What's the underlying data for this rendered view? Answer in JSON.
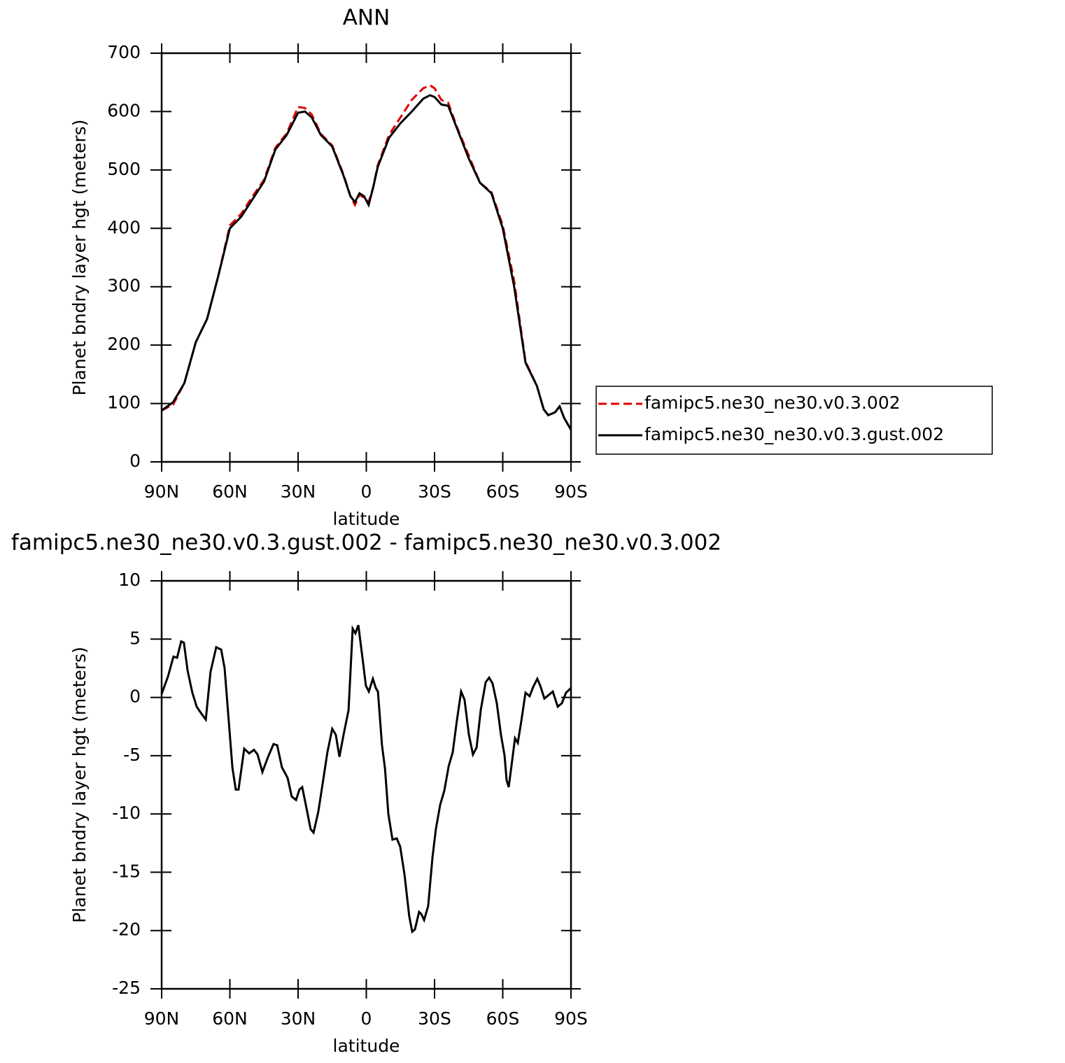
{
  "chart_data": [
    {
      "type": "line",
      "title": "ANN",
      "x_label": "latitude",
      "y_label": "Planet bndry layer hgt (meters)",
      "x": [
        90,
        85,
        80,
        75,
        70,
        65,
        60,
        55,
        50,
        45,
        40,
        35,
        30,
        27,
        24,
        20,
        15,
        10,
        7,
        5,
        3,
        1,
        -1,
        -3,
        -5,
        -10,
        -15,
        -20,
        -25,
        -28,
        -30,
        -33,
        -36,
        -40,
        -45,
        -50,
        -55,
        -60,
        -65,
        -70,
        -75,
        -78,
        -80,
        -83,
        -85,
        -87,
        -90
      ],
      "series": [
        {
          "name": "famipc5.ne30_ne30.v0.3.002",
          "color": "#e00000",
          "line_style": "dashed",
          "values": [
            88,
            98,
            135,
            205,
            245,
            320,
            405,
            425,
            455,
            483,
            538,
            563,
            608,
            606,
            595,
            562,
            542,
            492,
            455,
            440,
            458,
            452,
            445,
            470,
            508,
            560,
            590,
            620,
            640,
            645,
            640,
            620,
            615,
            572,
            525,
            478,
            462,
            405,
            310,
            172,
            130,
            90,
            80,
            85,
            95,
            75,
            55
          ]
        },
        {
          "name": "famipc5.ne30_ne30.v0.3.gust.002",
          "color": "#000000",
          "line_style": "solid",
          "values": [
            88,
            102,
            135,
            205,
            245,
            320,
            400,
            420,
            450,
            480,
            535,
            560,
            598,
            600,
            590,
            560,
            540,
            490,
            455,
            445,
            460,
            455,
            440,
            470,
            505,
            555,
            580,
            600,
            622,
            628,
            625,
            612,
            610,
            570,
            520,
            478,
            460,
            400,
            300,
            170,
            130,
            90,
            80,
            85,
            95,
            75,
            55
          ]
        }
      ],
      "xlim": [
        90,
        -90
      ],
      "xticks": [
        {
          "value": 90,
          "label": "90N"
        },
        {
          "value": 60,
          "label": "60N"
        },
        {
          "value": 30,
          "label": "30N"
        },
        0,
        {
          "value": -30,
          "label": "30S"
        },
        {
          "value": -60,
          "label": "60S"
        },
        {
          "value": -90,
          "label": "90S"
        }
      ],
      "ylim": [
        0,
        700
      ],
      "yticks": [
        0,
        100,
        200,
        300,
        400,
        500,
        600,
        700
      ],
      "legend": "outside right"
    },
    {
      "type": "line",
      "title": "famipc5.ne30_ne30.v0.3.gust.002 - famipc5.ne30_ne30.v0.3.002",
      "x_label": "latitude",
      "y_label": "Planet bndry layer hgt (meters)",
      "x": [
        90,
        87.2,
        84.8,
        83.2,
        81.4,
        80.2,
        78.6,
        76.5,
        74.6,
        72.5,
        70.6,
        68.5,
        66.0,
        63.8,
        62.3,
        58.9,
        57.4,
        56.2,
        53.7,
        51.5,
        49.4,
        47.8,
        45.7,
        43.2,
        40.8,
        39.2,
        37.1,
        34.6,
        32.8,
        30.9,
        29.4,
        28.2,
        26.6,
        24.5,
        23.2,
        21.1,
        19.2,
        17.1,
        15.0,
        13.4,
        11.8,
        10.0,
        7.8,
        6.0,
        4.8,
        3.5,
        1.7,
        0.2,
        -1.1,
        -2.9,
        -4.2,
        -5.1,
        -6.9,
        -8.2,
        -9.7,
        -11.5,
        -13.4,
        -14.9,
        -16.8,
        -18.9,
        -20.2,
        -21.4,
        -23.2,
        -24.2,
        -25.4,
        -27.2,
        -29.1,
        -30.6,
        -32.5,
        -34.3,
        -36.2,
        -38.0,
        -39.8,
        -41.7,
        -43.2,
        -45.1,
        -46.9,
        -48.5,
        -50.3,
        -52.5,
        -54.0,
        -55.5,
        -57.4,
        -59.2,
        -60.8,
        -61.7,
        -62.6,
        -63.8,
        -65.4,
        -66.6,
        -68.2,
        -70.0,
        -71.8,
        -73.4,
        -75.2,
        -76.5,
        -78.3,
        -80.2,
        -82.0,
        -84.2,
        -86.0,
        -87.8,
        -90
      ],
      "series": [
        {
          "color": "#000000",
          "line_style": "solid",
          "values": [
            0.3,
            1.8,
            3.5,
            3.4,
            4.8,
            4.7,
            2.3,
            0.4,
            -0.8,
            -1.4,
            -1.9,
            2.2,
            4.3,
            4.1,
            2.5,
            -6,
            -7.9,
            -7.9,
            -4.4,
            -4.8,
            -4.5,
            -4.9,
            -6.4,
            -5.1,
            -4.0,
            -4.1,
            -6.0,
            -6.9,
            -8.5,
            -8.8,
            -7.9,
            -7.7,
            -9.2,
            -11.3,
            -11.6,
            -9.8,
            -7.4,
            -4.7,
            -2.7,
            -3.2,
            -5.1,
            -3.2,
            -1.1,
            5.9,
            5.5,
            6.2,
            3.4,
            1.0,
            0.5,
            1.6,
            0.8,
            0.5,
            -4.1,
            -6.1,
            -10,
            -12.2,
            -12.1,
            -12.8,
            -15.2,
            -18.8,
            -20.1,
            -19.9,
            -18.4,
            -18.6,
            -19.1,
            -17.9,
            -13.7,
            -11.3,
            -9.2,
            -8.0,
            -5.9,
            -4.7,
            -2.0,
            0.5,
            -0.2,
            -3.2,
            -4.9,
            -4.3,
            -1.1,
            1.3,
            1.7,
            1.2,
            -0.5,
            -3.2,
            -5.0,
            -7.1,
            -7.7,
            -5.9,
            -3.5,
            -3.9,
            -2.0,
            0.4,
            0.1,
            0.9,
            1.6,
            1.0,
            -0.1,
            0.2,
            0.5,
            -0.8,
            -0.5,
            0.4,
            0.8
          ]
        }
      ],
      "xlim": [
        90,
        -90
      ],
      "xticks": [
        {
          "value": 90,
          "label": "90N"
        },
        {
          "value": 60,
          "label": "60N"
        },
        {
          "value": 30,
          "label": "30N"
        },
        0,
        {
          "value": -30,
          "label": "30S"
        },
        {
          "value": -60,
          "label": "60S"
        },
        {
          "value": -90,
          "label": "90S"
        }
      ],
      "ylim": [
        -25,
        10
      ],
      "yticks": [
        -25,
        -20,
        -15,
        -10,
        -5,
        0,
        5,
        10
      ]
    }
  ]
}
